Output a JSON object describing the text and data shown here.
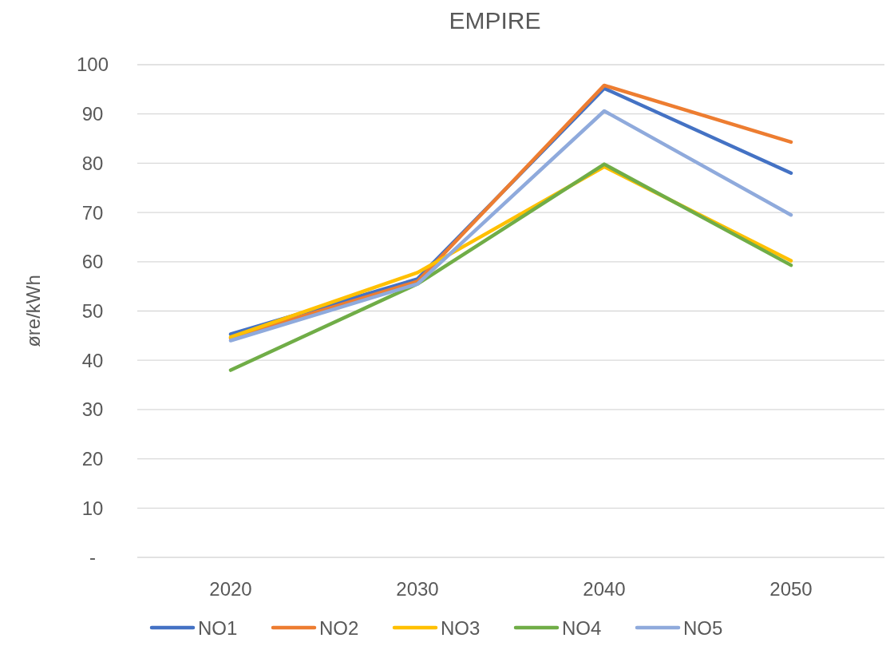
{
  "chart_data": {
    "type": "line",
    "title": "EMPIRE",
    "ylabel": "øre/kWh",
    "categories": [
      "2020",
      "2030",
      "2040",
      "2050"
    ],
    "series": [
      {
        "name": "NO1",
        "color": "#4472c4",
        "values": [
          45.3,
          56.5,
          95.2,
          78
        ]
      },
      {
        "name": "NO2",
        "color": "#ed7d31",
        "values": [
          44.5,
          56,
          95.8,
          84.3
        ]
      },
      {
        "name": "NO3",
        "color": "#ffc000",
        "values": [
          44.7,
          57.8,
          79.3,
          60.2
        ]
      },
      {
        "name": "NO4",
        "color": "#70ad47",
        "values": [
          38,
          55.5,
          79.8,
          59.3
        ]
      },
      {
        "name": "NO5",
        "color": "#8faadc",
        "values": [
          44,
          55.5,
          90.6,
          69.5
        ]
      }
    ],
    "ylim": [
      0,
      100
    ],
    "yticks": [
      {
        "value": 0,
        "label": "-"
      },
      10,
      20,
      30,
      40,
      50,
      60,
      70,
      80,
      90,
      100
    ],
    "grid": "y",
    "legend": "bottom",
    "line_style": "solid"
  }
}
